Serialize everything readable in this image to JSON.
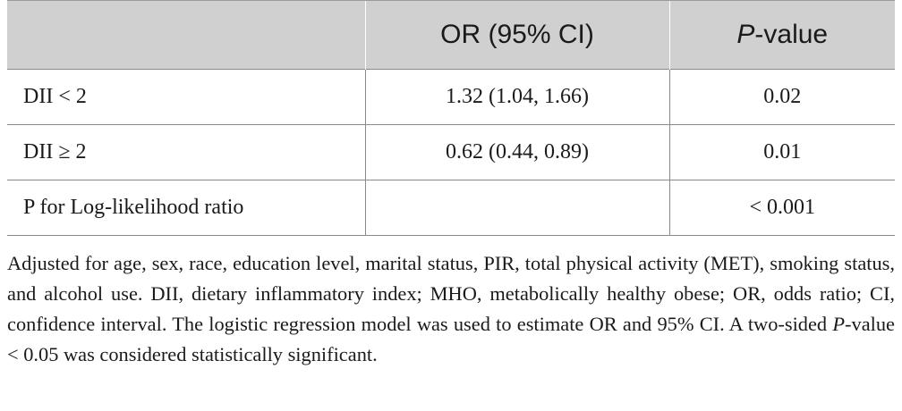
{
  "table": {
    "headers": {
      "col1": "",
      "col2": "OR (95% CI)",
      "col3_italic": "P",
      "col3_rest": "-value"
    },
    "rows": [
      {
        "label": "DII < 2",
        "or_ci": "1.32 (1.04, 1.66)",
        "p": "0.02"
      },
      {
        "label": "DII ≥ 2",
        "or_ci": "0.62 (0.44, 0.89)",
        "p": "0.01"
      },
      {
        "label": "P for Log-likelihood ratio",
        "or_ci": "",
        "p": "< 0.001"
      }
    ]
  },
  "footnote": {
    "part1": "Adjusted for age, sex, race, education level, marital status, PIR, total physical activity (MET), smoking status, and alcohol use. DII, dietary inflammatory index; MHO, metabolically healthy obese; OR, odds ratio; CI, confidence interval. The logistic regression model was used to estimate OR and 95% CI. A two-sided ",
    "p_italic": "P",
    "part2": "-value < 0.05 was considered statistically significant."
  }
}
